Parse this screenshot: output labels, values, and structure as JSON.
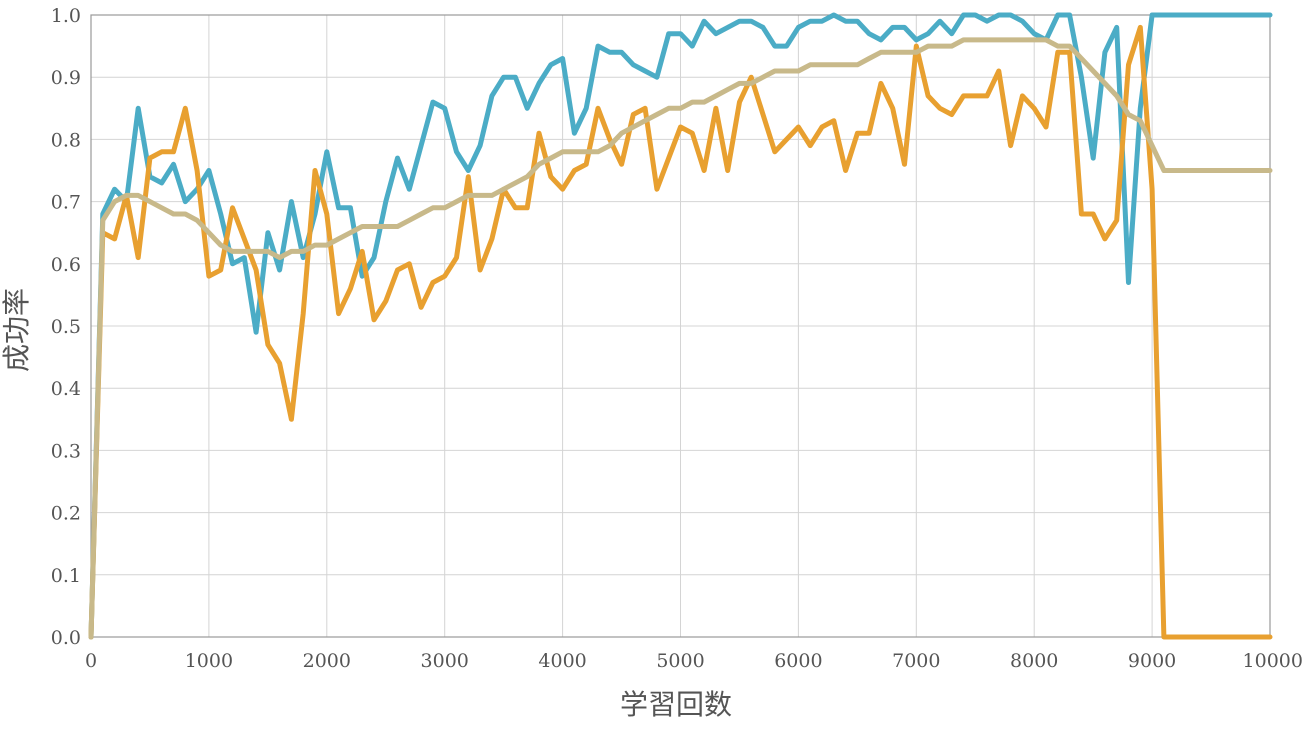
{
  "chart_data": {
    "type": "line",
    "title": "",
    "xlabel": "学習回数",
    "ylabel": "成功率",
    "xlim": [
      0,
      10000
    ],
    "ylim": [
      0.0,
      1.0
    ],
    "x_ticks": [
      "0",
      "1000",
      "2000",
      "3000",
      "4000",
      "5000",
      "6000",
      "7000",
      "8000",
      "9000",
      "10000"
    ],
    "y_ticks": [
      "0.0",
      "0.1",
      "0.2",
      "0.3",
      "0.4",
      "0.5",
      "0.6",
      "0.7",
      "0.8",
      "0.9",
      "1.0"
    ],
    "grid": true,
    "legend": "none",
    "x": [
      0,
      100,
      200,
      300,
      400,
      500,
      600,
      700,
      800,
      900,
      1000,
      1100,
      1200,
      1300,
      1400,
      1500,
      1600,
      1700,
      1800,
      1900,
      2000,
      2100,
      2200,
      2300,
      2400,
      2500,
      2600,
      2700,
      2800,
      2900,
      3000,
      3100,
      3200,
      3300,
      3400,
      3500,
      3600,
      3700,
      3800,
      3900,
      4000,
      4100,
      4200,
      4300,
      4400,
      4500,
      4600,
      4700,
      4800,
      4900,
      5000,
      5100,
      5200,
      5300,
      5400,
      5500,
      5600,
      5700,
      5800,
      5900,
      6000,
      6100,
      6200,
      6300,
      6400,
      6500,
      6600,
      6700,
      6800,
      6900,
      7000,
      7100,
      7200,
      7300,
      7400,
      7500,
      7600,
      7700,
      7800,
      7900,
      8000,
      8100,
      8200,
      8300,
      8400,
      8500,
      8600,
      8700,
      8800,
      8900,
      9000,
      9100,
      9200,
      9300,
      9400,
      9500,
      9600,
      9700,
      9800,
      9900,
      10000
    ],
    "series": [
      {
        "color": "#4bacc6",
        "values": [
          0.0,
          0.68,
          0.72,
          0.7,
          0.85,
          0.74,
          0.73,
          0.76,
          0.7,
          0.72,
          0.75,
          0.68,
          0.6,
          0.61,
          0.49,
          0.65,
          0.59,
          0.7,
          0.61,
          0.68,
          0.78,
          0.69,
          0.69,
          0.58,
          0.61,
          0.7,
          0.77,
          0.72,
          0.79,
          0.86,
          0.85,
          0.78,
          0.75,
          0.79,
          0.87,
          0.9,
          0.9,
          0.85,
          0.89,
          0.92,
          0.93,
          0.81,
          0.85,
          0.95,
          0.94,
          0.94,
          0.92,
          0.91,
          0.9,
          0.97,
          0.97,
          0.95,
          0.99,
          0.97,
          0.98,
          0.99,
          0.99,
          0.98,
          0.95,
          0.95,
          0.98,
          0.99,
          0.99,
          1.0,
          0.99,
          0.99,
          0.97,
          0.96,
          0.98,
          0.98,
          0.96,
          0.97,
          0.99,
          0.97,
          1.0,
          1.0,
          0.99,
          1.0,
          1.0,
          0.99,
          0.97,
          0.96,
          1.0,
          1.0,
          0.9,
          0.77,
          0.94,
          0.98,
          0.57,
          0.85,
          1.0,
          1.0,
          1.0,
          1.0,
          1.0,
          1.0,
          1.0,
          1.0,
          1.0,
          1.0,
          1.0
        ]
      },
      {
        "color": "#e8a030",
        "values": [
          0.0,
          0.65,
          0.64,
          0.71,
          0.61,
          0.77,
          0.78,
          0.78,
          0.85,
          0.75,
          0.58,
          0.59,
          0.69,
          0.64,
          0.59,
          0.47,
          0.44,
          0.35,
          0.52,
          0.75,
          0.68,
          0.52,
          0.56,
          0.62,
          0.51,
          0.54,
          0.59,
          0.6,
          0.53,
          0.57,
          0.58,
          0.61,
          0.74,
          0.59,
          0.64,
          0.72,
          0.69,
          0.69,
          0.81,
          0.74,
          0.72,
          0.75,
          0.76,
          0.85,
          0.8,
          0.76,
          0.84,
          0.85,
          0.72,
          0.77,
          0.82,
          0.81,
          0.75,
          0.85,
          0.75,
          0.86,
          0.9,
          0.84,
          0.78,
          0.8,
          0.82,
          0.79,
          0.82,
          0.83,
          0.75,
          0.81,
          0.81,
          0.89,
          0.85,
          0.76,
          0.95,
          0.87,
          0.85,
          0.84,
          0.87,
          0.87,
          0.87,
          0.91,
          0.79,
          0.87,
          0.85,
          0.82,
          0.94,
          0.94,
          0.68,
          0.68,
          0.64,
          0.67,
          0.92,
          0.98,
          0.72,
          0.0,
          0.0,
          0.0,
          0.0,
          0.0,
          0.0,
          0.0,
          0.0,
          0.0,
          0.0
        ]
      },
      {
        "color": "#c8b98a",
        "values": [
          0.0,
          0.67,
          0.7,
          0.71,
          0.71,
          0.7,
          0.69,
          0.68,
          0.68,
          0.67,
          0.65,
          0.63,
          0.62,
          0.62,
          0.62,
          0.62,
          0.61,
          0.62,
          0.62,
          0.63,
          0.63,
          0.64,
          0.65,
          0.66,
          0.66,
          0.66,
          0.66,
          0.67,
          0.68,
          0.69,
          0.69,
          0.7,
          0.71,
          0.71,
          0.71,
          0.72,
          0.73,
          0.74,
          0.76,
          0.77,
          0.78,
          0.78,
          0.78,
          0.78,
          0.79,
          0.81,
          0.82,
          0.83,
          0.84,
          0.85,
          0.85,
          0.86,
          0.86,
          0.87,
          0.88,
          0.89,
          0.89,
          0.9,
          0.91,
          0.91,
          0.91,
          0.92,
          0.92,
          0.92,
          0.92,
          0.92,
          0.93,
          0.94,
          0.94,
          0.94,
          0.94,
          0.95,
          0.95,
          0.95,
          0.96,
          0.96,
          0.96,
          0.96,
          0.96,
          0.96,
          0.96,
          0.96,
          0.95,
          0.95,
          0.93,
          0.91,
          0.89,
          0.87,
          0.84,
          0.83,
          0.79,
          0.75,
          0.75,
          0.75,
          0.75,
          0.75,
          0.75,
          0.75,
          0.75,
          0.75,
          0.75
        ]
      }
    ]
  }
}
